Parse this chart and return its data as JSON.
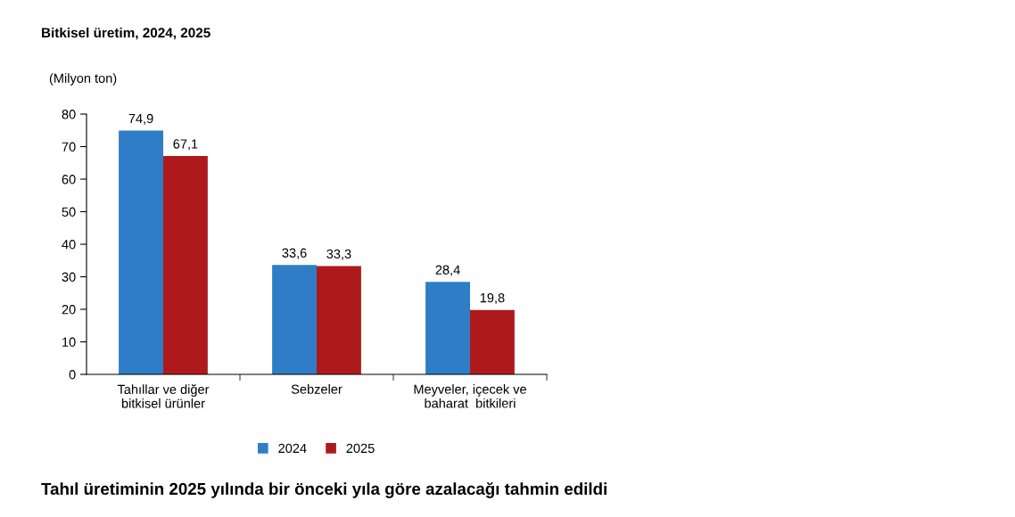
{
  "chart_data": {
    "type": "bar",
    "title": "Bitkisel üretim, 2024, 2025",
    "ylabel": "(Milyon ton)",
    "categories": [
      "Tahıllar ve diğer\nbitkisel ürünler",
      "Sebzeler",
      "Meyveler, içecek ve\nbaharat  bitkileri"
    ],
    "series": [
      {
        "name": "2024",
        "color": "#2e7dc6",
        "values": [
          74.9,
          33.6,
          28.4
        ],
        "value_labels": [
          "74,9",
          "33,6",
          "28,4"
        ]
      },
      {
        "name": "2025",
        "color": "#ae1a1c",
        "values": [
          67.1,
          33.3,
          19.8
        ],
        "value_labels": [
          "67,1",
          "33,3",
          "19,8"
        ]
      }
    ],
    "ylim": [
      0,
      80
    ],
    "yticks": [
      0,
      10,
      20,
      30,
      40,
      50,
      60,
      70,
      80
    ],
    "grid": false,
    "legend": "bottom",
    "annotations": [
      "Tahıl üretiminin 2025 yılında bir önceki yıla göre azalacağı tahmin edildi"
    ]
  }
}
